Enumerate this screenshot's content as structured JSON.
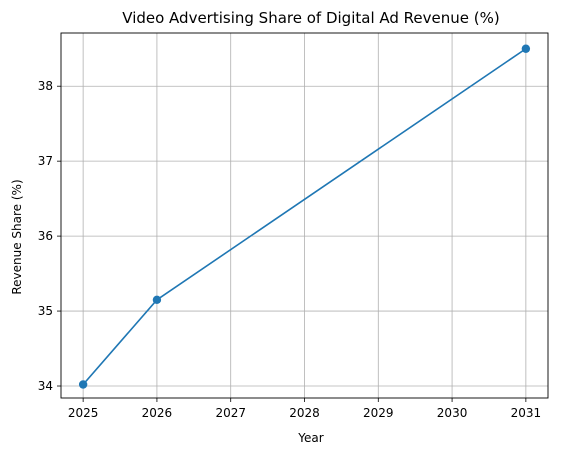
{
  "chart_data": {
    "type": "line",
    "title": "Video Advertising Share of Digital Ad Revenue (%)",
    "xlabel": "Year",
    "ylabel": "Revenue Share (%)",
    "x": [
      2025,
      2026,
      2031
    ],
    "series": [
      {
        "values": [
          34.02,
          35.15,
          38.5
        ],
        "color": "#1f77b4",
        "marker": "circle"
      }
    ],
    "xticks": [
      "2025",
      "2026",
      "2027",
      "2028",
      "2029",
      "2030",
      "2031"
    ],
    "yticks": [
      "34",
      "35",
      "36",
      "37",
      "38"
    ],
    "xlim": [
      2024.7,
      2031.3
    ],
    "ylim": [
      33.84,
      38.71
    ],
    "grid": true,
    "legend": "none"
  }
}
